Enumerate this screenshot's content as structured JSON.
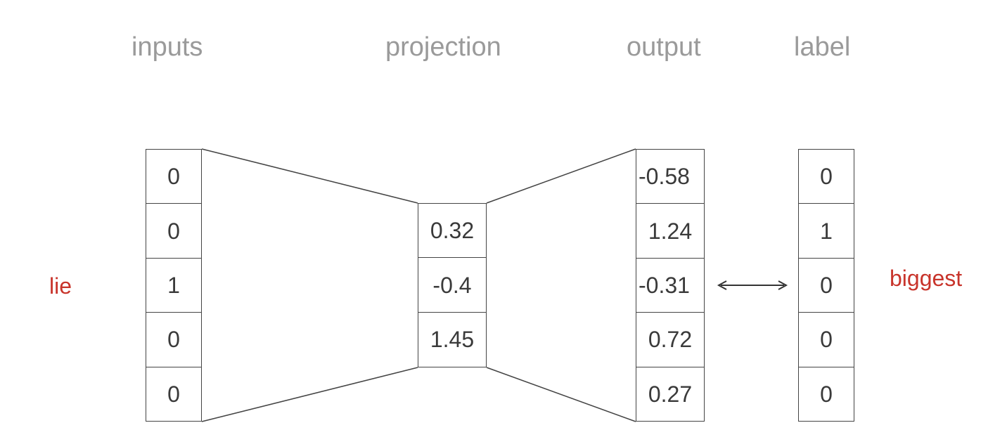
{
  "headers": {
    "inputs": "inputs",
    "projection": "projection",
    "output": "output",
    "label": "label"
  },
  "input_word": "lie",
  "target_word": "biggest",
  "columns": {
    "inputs": [
      "0",
      "0",
      "1",
      "0",
      "0"
    ],
    "projection": [
      "0.32",
      "-0.4",
      "1.45"
    ],
    "output": [
      "-0.58",
      "1.24",
      "-0.31",
      "0.72",
      "0.27"
    ],
    "label": [
      "0",
      "1",
      "0",
      "0",
      "0"
    ]
  },
  "colors": {
    "header": "#9a9a9a",
    "word": "#c8342b",
    "line": "#444444"
  }
}
